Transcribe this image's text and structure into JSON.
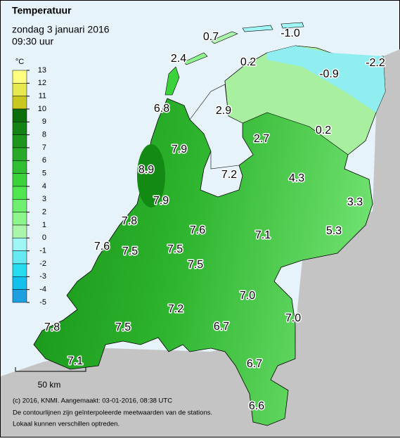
{
  "header": {
    "title": "Temperatuur",
    "date": "zondag 3 januari 2016",
    "time": "09:30 uur"
  },
  "legend": {
    "unit": "°C",
    "ticks": [
      13,
      12,
      11,
      10,
      9,
      8,
      7,
      6,
      5,
      4,
      3,
      2,
      1,
      0,
      -1,
      -2,
      -3,
      -4,
      -5
    ],
    "colors": [
      "#ffff80",
      "#e8e850",
      "#c8c820",
      "#0a6e0a",
      "#148214",
      "#1e961e",
      "#28aa28",
      "#32be32",
      "#3cd23c",
      "#50e650",
      "#6ef06e",
      "#8cf58c",
      "#aaf5aa",
      "#a0f5f5",
      "#64eaf0",
      "#28dcf0",
      "#14c0ec",
      "#1ea0e0"
    ]
  },
  "stations": [
    "0.7",
    "-1.0",
    "2.4",
    "0.2",
    "-0.9",
    "-2.2",
    "6.8",
    "2.9",
    "0.2",
    "2.7",
    "7.9",
    "8.9",
    "7.2",
    "4.3",
    "7.9",
    "3.3",
    "7.8",
    "7.6",
    "5.3",
    "7.1",
    "7.6",
    "7.5",
    "7.5",
    "7.5",
    "7.0",
    "7.2",
    "7.0",
    "6.7",
    "7.8",
    "7.5",
    "7.1",
    "6.7",
    "6.6"
  ],
  "scale_bar": "50 km",
  "footer": [
    "(c) 2016, KNMI. Aangemaakt: 03-01-2016, 08:38 UTC",
    "De contourlijnen zijn geïnterpoleerde meetwaarden van de stations.",
    "Lokaal kunnen verschillen optreden."
  ]
}
